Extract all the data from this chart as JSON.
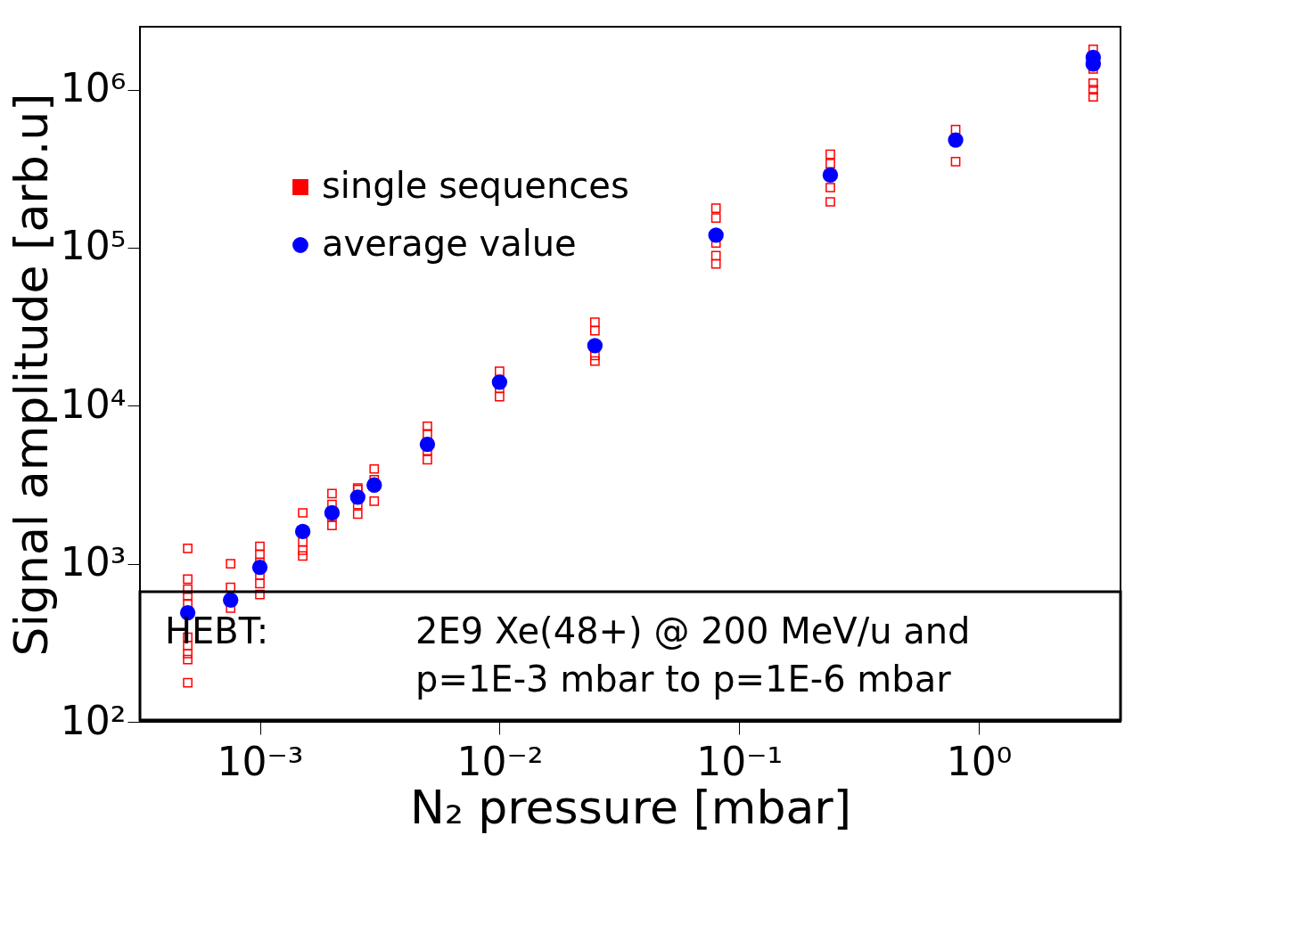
{
  "chart_data": {
    "type": "scatter",
    "xlabel": "N₂ pressure [mbar]",
    "ylabel": "Signal amplitude [arb.u]",
    "log": "xy",
    "xlim": [
      0.000316,
      3.9
    ],
    "ylim": [
      100,
      2500000
    ],
    "xticks": [
      {
        "value": 0.001,
        "label": "10⁻³"
      },
      {
        "value": 0.01,
        "label": "10⁻²"
      },
      {
        "value": 0.1,
        "label": "10⁻¹"
      },
      {
        "value": 1,
        "label": "10⁰"
      }
    ],
    "yticks": [
      {
        "value": 100,
        "label": "10²"
      },
      {
        "value": 1000,
        "label": "10³"
      },
      {
        "value": 10000,
        "label": "10⁴"
      },
      {
        "value": 100000,
        "label": "10⁵"
      },
      {
        "value": 1000000,
        "label": "10⁶"
      }
    ],
    "grid": false,
    "legend": "top left",
    "annotations": [
      "HEBT:",
      "2E9 Xe(48+) @ 200 MeV/u and\np=1E-3 mbar to p=1E-6 mbar"
    ],
    "series": [
      {
        "name": "single sequences",
        "color": "#ff0000",
        "marker": "square",
        "x": [
          0.0005,
          0.0005,
          0.0005,
          0.0005,
          0.0005,
          0.0005,
          0.0005,
          0.0005,
          0.0005,
          0.0005,
          0.000755,
          0.000755,
          0.000755,
          0.001,
          0.001,
          0.001,
          0.001,
          0.001,
          0.001,
          0.00151,
          0.00151,
          0.00151,
          0.00151,
          0.002,
          0.002,
          0.002,
          0.002,
          0.00256,
          0.00256,
          0.00256,
          0.00256,
          0.003,
          0.003,
          0.003,
          0.005,
          0.005,
          0.005,
          0.005,
          0.01,
          0.01,
          0.01,
          0.025,
          0.025,
          0.025,
          0.025,
          0.08,
          0.08,
          0.08,
          0.08,
          0.08,
          0.24,
          0.24,
          0.24,
          0.24,
          0.8,
          0.8,
          3,
          3,
          3,
          3,
          3
        ],
        "values": [
          1250,
          800,
          690,
          630,
          555,
          343,
          304,
          270,
          248,
          177,
          1000,
          710,
          525,
          1290,
          1150,
          1020,
          850,
          750,
          640,
          2100,
          1380,
          1220,
          1120,
          2780,
          2370,
          1980,
          1750,
          3020,
          2950,
          2370,
          2060,
          3980,
          3400,
          2490,
          7400,
          6640,
          5200,
          4560,
          16500,
          12900,
          11400,
          33700,
          29800,
          20800,
          19200,
          178000,
          154000,
          107000,
          89000,
          79000,
          390000,
          340000,
          240000,
          195000,
          560000,
          350000,
          1800000,
          1350000,
          1100000,
          1000000,
          900000
        ]
      },
      {
        "name": "average value",
        "color": "#0000ff",
        "marker": "circle",
        "x": [
          0.0005,
          0.000755,
          0.001,
          0.00151,
          0.002,
          0.00256,
          0.003,
          0.005,
          0.01,
          0.025,
          0.08,
          0.24,
          0.8,
          3,
          3
        ],
        "values": [
          490,
          590,
          950,
          1600,
          2100,
          2640,
          3150,
          5700,
          14100,
          24000,
          120000,
          288000,
          480000,
          1600000,
          1450000
        ]
      }
    ]
  }
}
